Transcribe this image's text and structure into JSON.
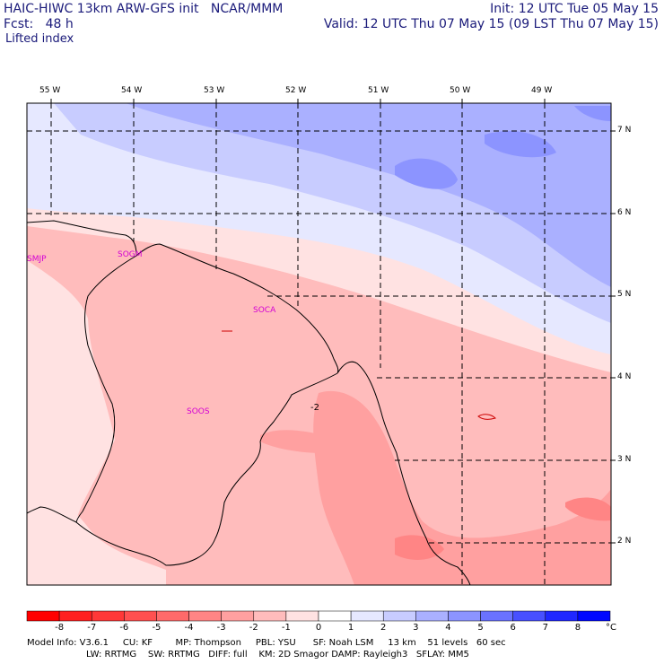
{
  "header": {
    "title_left": "HAIC-HIWC 13km ARW-GFS init   NCAR/MMM",
    "fcst": "Fcst:   48 h",
    "field": "Lifted index",
    "init": "Init: 12 UTC Tue 05 May 15",
    "valid": "Valid: 12 UTC Thu 07 May 15 (09 LST Thu 07 May 15)"
  },
  "map": {
    "lon_labels": [
      "55 W",
      "54 W",
      "53 W",
      "52 W",
      "51 W",
      "50 W",
      "49 W"
    ],
    "lat_labels": [
      "7 N",
      "6 N",
      "5 N",
      "4 N",
      "3 N",
      "2 N"
    ],
    "stations": [
      "SMJP",
      "SOGM",
      "SOCA",
      "SOOS"
    ],
    "contour_label": "-2"
  },
  "colorbar": {
    "ticks": [
      "-8",
      "-7",
      "-6",
      "-5",
      "-4",
      "-3",
      "-2",
      "-1",
      "0",
      "1",
      "2",
      "3",
      "4",
      "5",
      "6",
      "7",
      "8"
    ],
    "unit": "°C",
    "colors": [
      "#ff0000",
      "#ff2020",
      "#ff3838",
      "#ff5050",
      "#ff6a6a",
      "#ff8585",
      "#ffa0a0",
      "#ffbcbc",
      "#ffe2e2",
      "#ffffff",
      "#e6e8ff",
      "#c8ccff",
      "#aab0ff",
      "#8c94ff",
      "#6a72ff",
      "#4850ff",
      "#2028ff",
      "#0008ff"
    ]
  },
  "footer": {
    "line1": "Model Info: V3.6.1     CU: KF        MP: Thompson     PBL: YSU      SF: Noah LSM     13 km    51 levels   60 sec",
    "line2": "LW: RRTMG    SW: RRTMG   DIFF: full    KM: 2D Smagor DAMP: Rayleigh3   SFLAY: MM5"
  }
}
